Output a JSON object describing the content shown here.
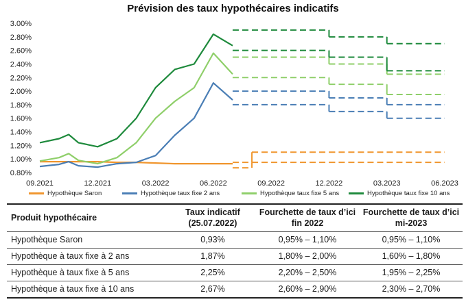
{
  "title": "Prévision des taux hypothécaires indicatifs",
  "legend": [
    {
      "label": "Hypothèque Saron",
      "color": "#f0962e"
    },
    {
      "label": "Hypothèque taux fixe 2 ans",
      "color": "#4a7eb5"
    },
    {
      "label": "Hypothèque taux fixe 5 ans",
      "color": "#8fcf6a"
    },
    {
      "label": "Hypothèque taux fixe 10 ans",
      "color": "#1e8a3c"
    }
  ],
  "chart_data": {
    "type": "line",
    "title": "Prévision des taux hypothécaires indicatifs",
    "xlabel": "",
    "ylabel": "",
    "x_ticks": [
      "09.2021",
      "12.2021",
      "03.2022",
      "06.2022",
      "09.2022",
      "12.2022",
      "03.2023",
      "06.2023"
    ],
    "y_ticks": [
      "0.80%",
      "1.00%",
      "1.20%",
      "1.40%",
      "1.60%",
      "1.80%",
      "2.00%",
      "2.20%",
      "2.40%",
      "2.60%",
      "2.80%",
      "3.00%"
    ],
    "ylim": [
      0.8,
      3.0
    ],
    "grid": false,
    "legend_position": "bottom",
    "series": [
      {
        "name": "Hypothèque Saron",
        "color": "#f0962e",
        "history": [
          [
            "09.2021",
            0.96
          ],
          [
            "10.2021",
            0.96
          ],
          [
            "11.2021",
            0.96
          ],
          [
            "12.2021",
            0.96
          ],
          [
            "01.2022",
            0.95
          ],
          [
            "02.2022",
            0.95
          ],
          [
            "03.2022",
            0.94
          ],
          [
            "04.2022",
            0.93
          ],
          [
            "05.2022",
            0.93
          ],
          [
            "06.2022",
            0.93
          ],
          [
            "07.2022",
            0.93
          ]
        ],
        "forecast_bands": [
          {
            "from": "07.2022",
            "to": "08.2022",
            "low": 0.87,
            "high": 0.95
          },
          {
            "from": "08.2022",
            "to": "12.2022",
            "low": 0.95,
            "high": 1.1
          },
          {
            "from": "12.2022",
            "to": "06.2023",
            "low": 0.95,
            "high": 1.1
          }
        ]
      },
      {
        "name": "Hypothèque taux fixe 2 ans",
        "color": "#4a7eb5",
        "history": [
          [
            "09.2021",
            0.89
          ],
          [
            "10.2021",
            0.92
          ],
          [
            "10.2021",
            0.96
          ],
          [
            "11.2021",
            0.9
          ],
          [
            "12.2021",
            0.88
          ],
          [
            "01.2022",
            0.93
          ],
          [
            "02.2022",
            0.95
          ],
          [
            "03.2022",
            1.05
          ],
          [
            "04.2022",
            1.35
          ],
          [
            "05.2022",
            1.6
          ],
          [
            "06.2022",
            2.12
          ],
          [
            "07.2022",
            1.87
          ]
        ],
        "forecast_bands": [
          {
            "from": "07.2022",
            "to": "12.2022",
            "low": 1.8,
            "high": 2.0
          },
          {
            "from": "12.2022",
            "to": "03.2023",
            "low": 1.7,
            "high": 1.9
          },
          {
            "from": "03.2023",
            "to": "06.2023",
            "low": 1.6,
            "high": 1.8
          }
        ]
      },
      {
        "name": "Hypothèque taux fixe 5 ans",
        "color": "#8fcf6a",
        "history": [
          [
            "09.2021",
            0.97
          ],
          [
            "10.2021",
            1.02
          ],
          [
            "10.2021",
            1.08
          ],
          [
            "11.2021",
            0.98
          ],
          [
            "12.2021",
            0.93
          ],
          [
            "01.2022",
            1.02
          ],
          [
            "02.2022",
            1.24
          ],
          [
            "03.2022",
            1.6
          ],
          [
            "04.2022",
            1.85
          ],
          [
            "05.2022",
            2.05
          ],
          [
            "06.2022",
            2.56
          ],
          [
            "07.2022",
            2.25
          ]
        ],
        "forecast_bands": [
          {
            "from": "07.2022",
            "to": "12.2022",
            "low": 2.2,
            "high": 2.5
          },
          {
            "from": "12.2022",
            "to": "03.2023",
            "low": 2.1,
            "high": 2.4
          },
          {
            "from": "03.2023",
            "to": "06.2023",
            "low": 1.95,
            "high": 2.25
          }
        ]
      },
      {
        "name": "Hypothèque taux fixe 10 ans",
        "color": "#1e8a3c",
        "history": [
          [
            "09.2021",
            1.24
          ],
          [
            "10.2021",
            1.3
          ],
          [
            "10.2021",
            1.36
          ],
          [
            "11.2021",
            1.24
          ],
          [
            "12.2021",
            1.18
          ],
          [
            "01.2022",
            1.3
          ],
          [
            "02.2022",
            1.6
          ],
          [
            "03.2022",
            2.05
          ],
          [
            "04.2022",
            2.32
          ],
          [
            "05.2022",
            2.4
          ],
          [
            "06.2022",
            2.84
          ],
          [
            "07.2022",
            2.67
          ]
        ],
        "forecast_bands": [
          {
            "from": "07.2022",
            "to": "12.2022",
            "low": 2.6,
            "high": 2.9
          },
          {
            "from": "12.2022",
            "to": "03.2023",
            "low": 2.5,
            "high": 2.8
          },
          {
            "from": "03.2023",
            "to": "06.2023",
            "low": 2.3,
            "high": 2.7
          }
        ]
      }
    ]
  },
  "table": {
    "headers": [
      "Produit hypothécaire",
      "Taux indicatif (25.07.2022)",
      "Fourchette de taux d’ici fin 2022",
      "Fourchette de taux d’ici mi-2023"
    ],
    "rows": [
      [
        "Hypothèque Saron",
        "0,93%",
        "0,95% – 1,10%",
        "0,95% – 1,10%"
      ],
      [
        "Hypothèque à taux fixe à 2 ans",
        "1,87%",
        "1,80% – 2,00%",
        "1,60% – 1,80%"
      ],
      [
        "Hypothèque à taux fixe à 5 ans",
        "2,25%",
        "2,20% – 2,50%",
        "1,95% – 2,25%"
      ],
      [
        "Hypothèque à taux fixe à 10 ans",
        "2,67%",
        "2,60% – 2,90%",
        "2,30% – 2,70%"
      ]
    ]
  }
}
